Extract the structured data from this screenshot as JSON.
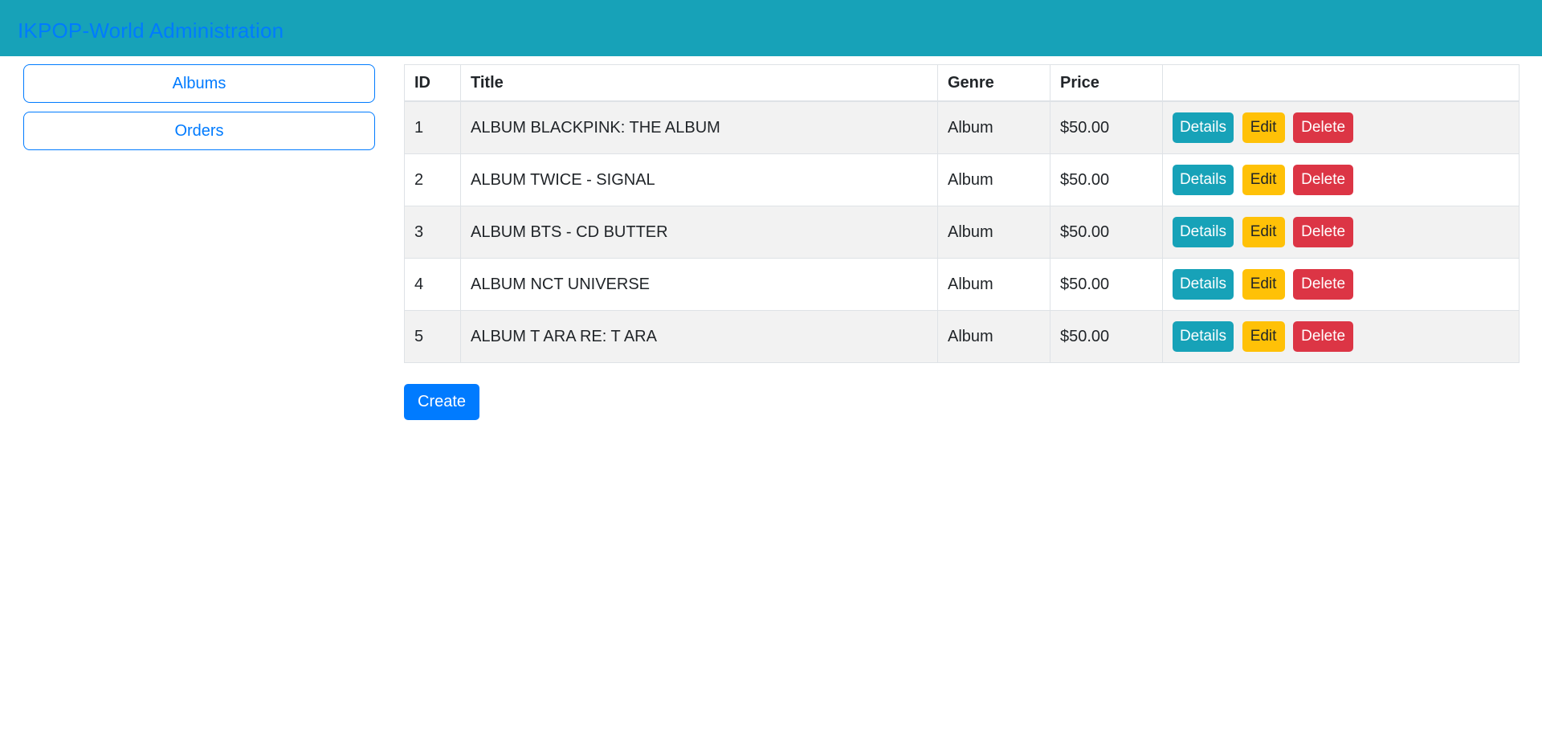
{
  "header": {
    "title": "IKPOP-World Administration"
  },
  "sidebar": {
    "items": [
      {
        "label": "Albums"
      },
      {
        "label": "Orders"
      }
    ]
  },
  "table": {
    "columns": {
      "id": "ID",
      "title": "Title",
      "genre": "Genre",
      "price": "Price",
      "actions": ""
    },
    "rows": [
      {
        "id": "1",
        "title": "ALBUM BLACKPINK: THE ALBUM",
        "genre": "Album",
        "price": "$50.00"
      },
      {
        "id": "2",
        "title": "ALBUM TWICE - SIGNAL",
        "genre": "Album",
        "price": "$50.00"
      },
      {
        "id": "3",
        "title": "ALBUM BTS - CD BUTTER",
        "genre": "Album",
        "price": "$50.00"
      },
      {
        "id": "4",
        "title": "ALBUM NCT UNIVERSE",
        "genre": "Album",
        "price": "$50.00"
      },
      {
        "id": "5",
        "title": "ALBUM T ARA RE: T ARA",
        "genre": "Album",
        "price": "$50.00"
      }
    ],
    "actions": {
      "details": "Details",
      "edit": "Edit",
      "delete": "Delete"
    }
  },
  "create_button": {
    "label": "Create"
  },
  "colors": {
    "header-bg": "#17a2b8",
    "primary": "#007bff",
    "info": "#17a2b8",
    "warning": "#ffc107",
    "danger": "#dc3545",
    "stripe": "#f2f2f2",
    "border": "#dee2e6",
    "text": "#212529"
  }
}
